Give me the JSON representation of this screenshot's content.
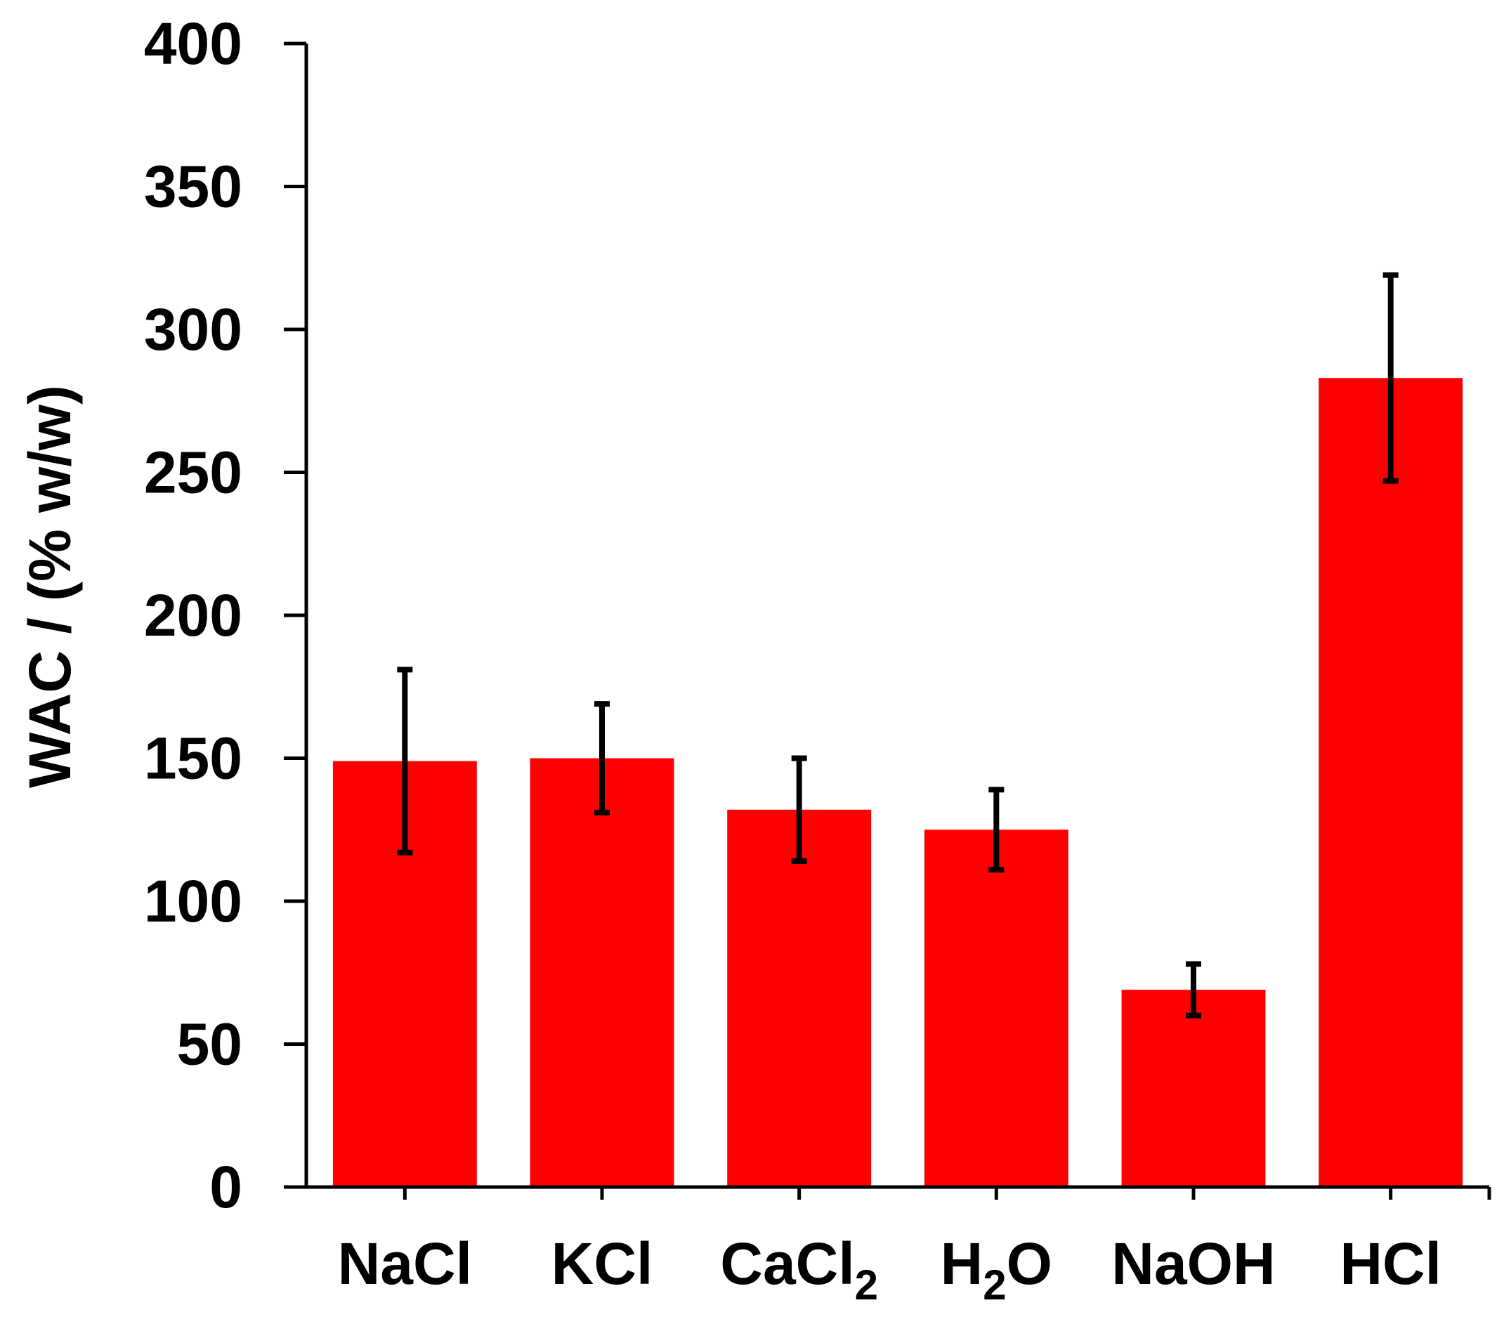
{
  "chart_data": {
    "type": "bar",
    "ylabel": "WAC / (% w/w)",
    "xlabel": "",
    "ylim": [
      0,
      400
    ],
    "yticks": [
      0,
      50,
      100,
      150,
      200,
      250,
      300,
      350,
      400
    ],
    "grid": false,
    "legend": "none",
    "bar_color": "#ff0000",
    "error_color": "#000000",
    "categories": [
      {
        "base": "NaCl",
        "sub": "",
        "tail": ""
      },
      {
        "base": "KCl",
        "sub": "",
        "tail": ""
      },
      {
        "base": "CaCl",
        "sub": "2",
        "tail": ""
      },
      {
        "base": "H",
        "sub": "2",
        "tail": "O"
      },
      {
        "base": "NaOH",
        "sub": "",
        "tail": ""
      },
      {
        "base": "HCl",
        "sub": "",
        "tail": ""
      }
    ],
    "values": [
      149,
      150,
      132,
      125,
      69,
      283
    ],
    "errors": [
      32,
      19,
      18,
      14,
      9,
      36
    ]
  }
}
